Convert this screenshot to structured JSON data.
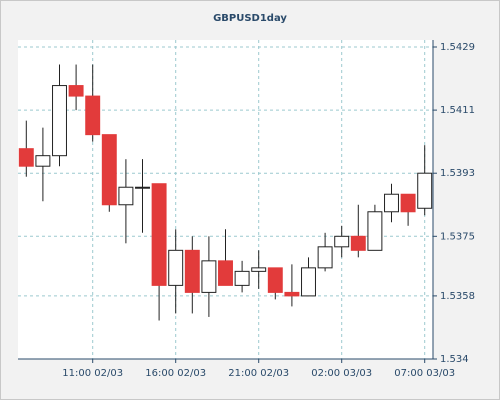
{
  "chart_data": {
    "type": "candlestick",
    "title": "GBPUSD1day",
    "categories": [
      null,
      null,
      null,
      null,
      "11:00 02/03",
      null,
      null,
      null,
      null,
      "16:00 02/03",
      null,
      null,
      null,
      null,
      "21:00 02/03",
      null,
      null,
      null,
      null,
      "02:00 03/03",
      null,
      null,
      null,
      null,
      "07:00 03/03"
    ],
    "open": [
      1.54,
      1.5395,
      1.5398,
      1.5418,
      1.5415,
      1.5404,
      1.5384,
      1.5389,
      1.539,
      1.5361,
      1.5371,
      1.5359,
      1.5368,
      1.5361,
      1.5365,
      1.5366,
      1.5359,
      1.5358,
      1.5366,
      1.5372,
      1.5375,
      1.5371,
      1.5382,
      1.5387,
      1.5383
    ],
    "high": [
      1.5408,
      1.5406,
      1.5424,
      1.5424,
      1.5424,
      1.5404,
      1.5397,
      1.5397,
      1.539,
      1.5377,
      1.5375,
      1.5375,
      1.5377,
      1.5368,
      1.5371,
      1.5366,
      1.5367,
      1.5369,
      1.5376,
      1.5378,
      1.5384,
      1.5384,
      1.539,
      1.5387,
      1.5401
    ],
    "low": [
      1.5392,
      1.5385,
      1.5395,
      1.5411,
      1.5402,
      1.5382,
      1.5373,
      1.5376,
      1.5351,
      1.5353,
      1.5353,
      1.5352,
      1.5361,
      1.5359,
      1.536,
      1.5357,
      1.5355,
      1.5358,
      1.5365,
      1.5369,
      1.5369,
      1.5371,
      1.5379,
      1.5378,
      1.5381
    ],
    "close": [
      1.5395,
      1.5398,
      1.5418,
      1.5415,
      1.5404,
      1.5384,
      1.5389,
      1.5389,
      1.5361,
      1.5371,
      1.5359,
      1.5368,
      1.5361,
      1.5365,
      1.5366,
      1.5359,
      1.5358,
      1.5366,
      1.5372,
      1.5375,
      1.5371,
      1.5382,
      1.5387,
      1.5382,
      1.5393
    ],
    "up_color": "#ffffff",
    "down_color": "#e23b3b",
    "ylim": [
      1.534,
      1.5431
    ],
    "yticks": [
      1.534,
      1.5358,
      1.5375,
      1.5393,
      1.5411,
      1.5429
    ],
    "grid": true
  }
}
